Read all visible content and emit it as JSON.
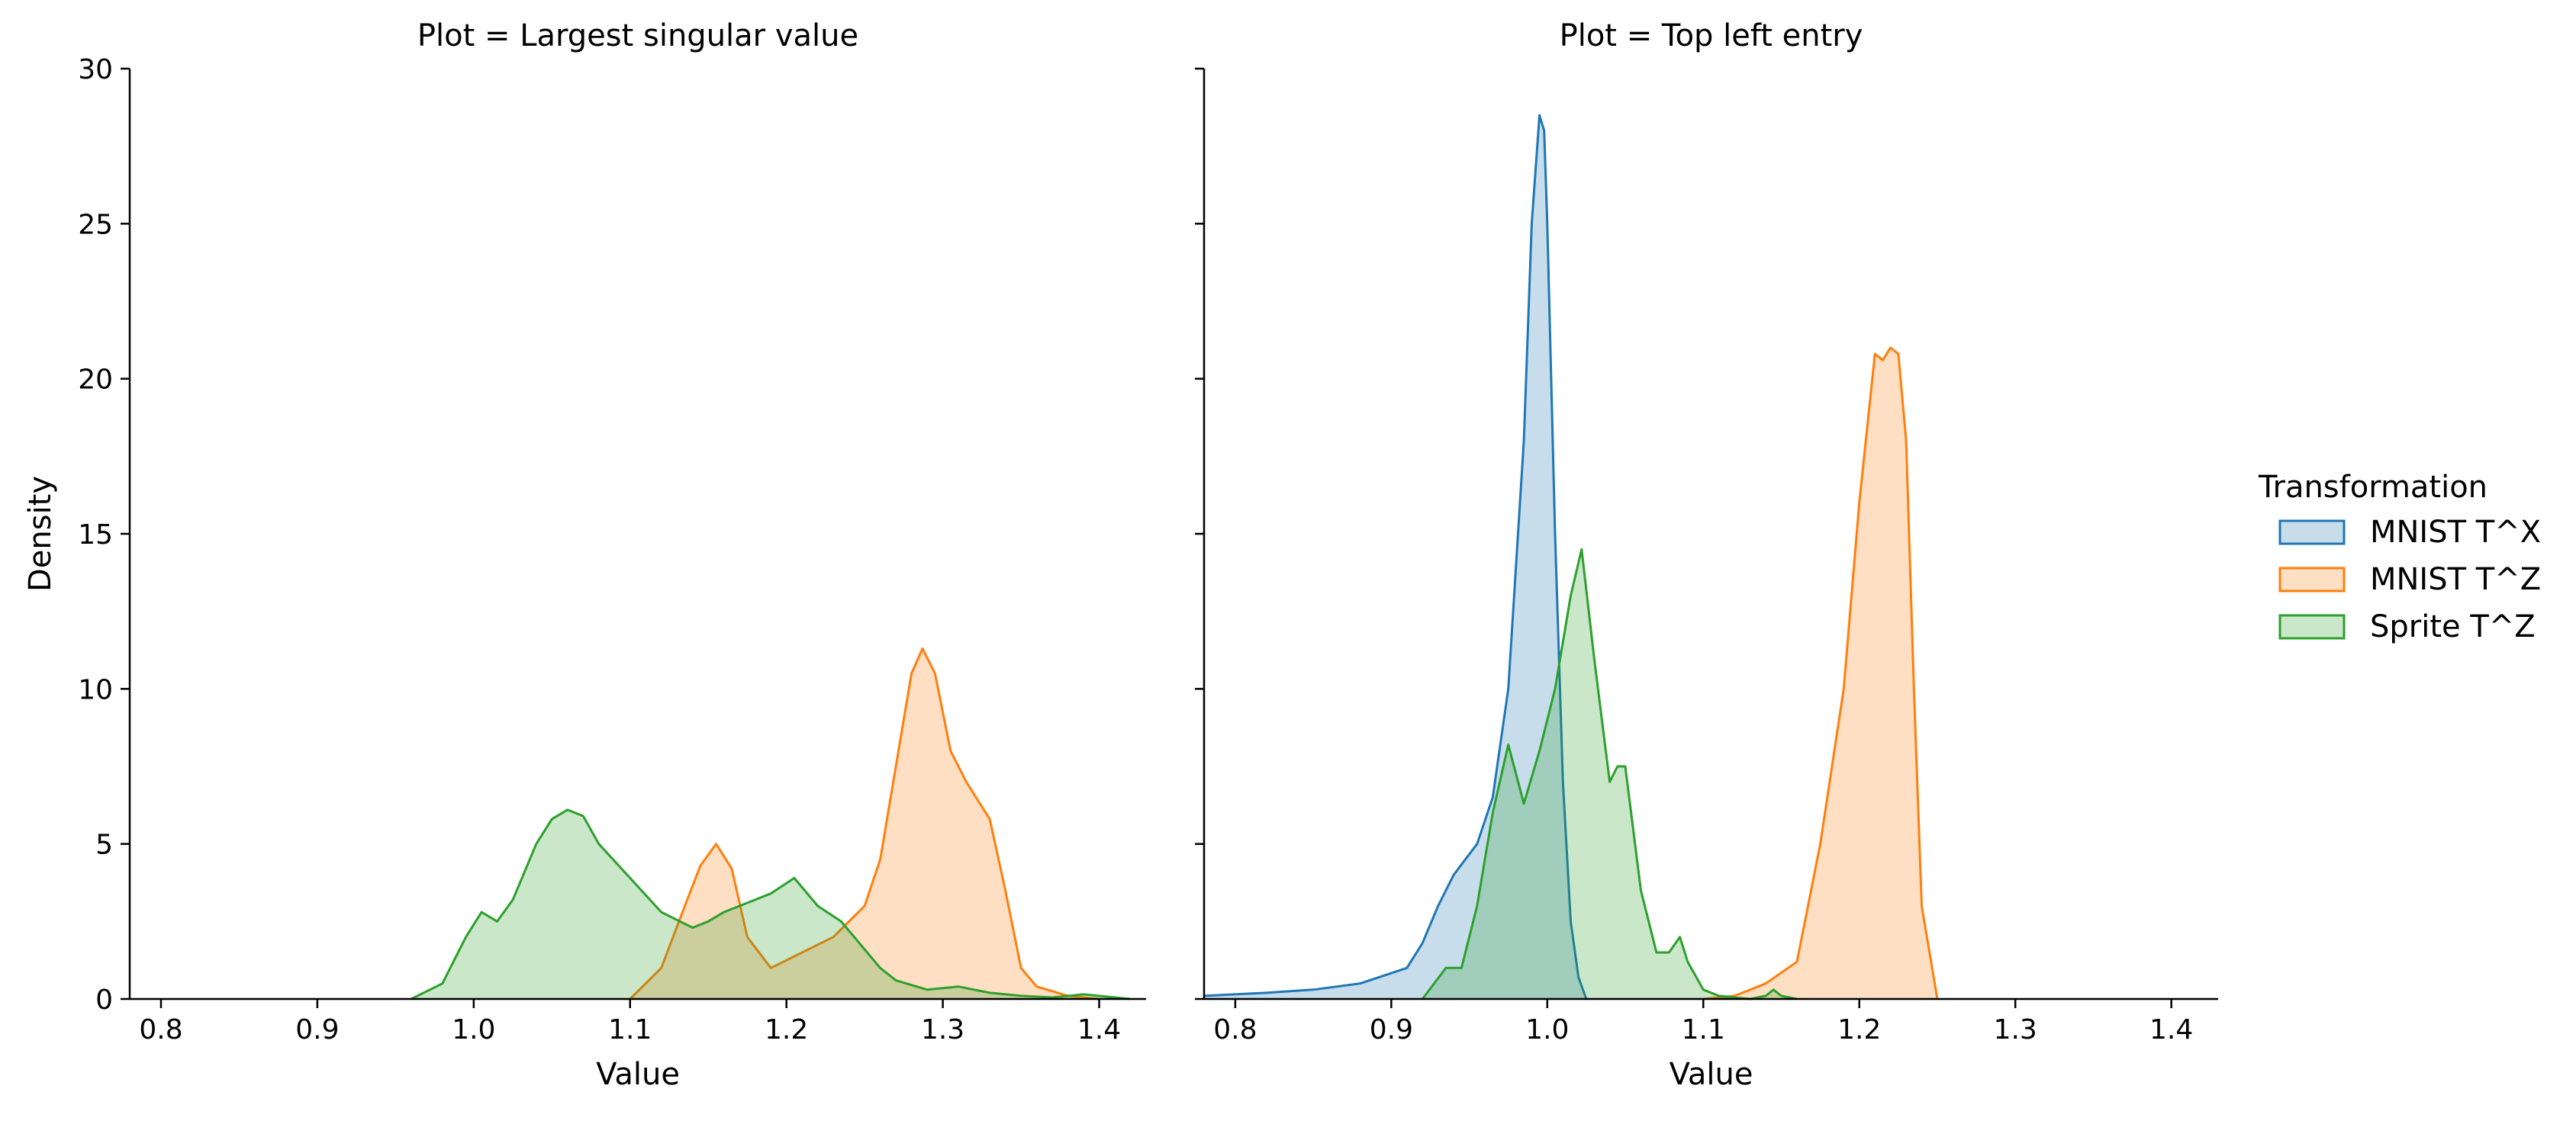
{
  "colors": {
    "MNIST T^X": "#1f77b4",
    "MNIST T^Z": "#ff7f0e",
    "Sprite T^Z": "#2ca02c"
  },
  "chart_data": {
    "type": "area",
    "subtype": "kde",
    "shared_y": true,
    "ylabel": "Density",
    "ylim": [
      0,
      30
    ],
    "yticks": [
      0,
      5,
      10,
      15,
      20,
      25,
      30
    ],
    "xlim": [
      0.78,
      1.43
    ],
    "xticks": [
      0.8,
      0.9,
      1.0,
      1.1,
      1.2,
      1.3,
      1.4
    ],
    "xtick_labels": [
      "0.8",
      "0.9",
      "1.0",
      "1.1",
      "1.2",
      "1.3",
      "1.4"
    ],
    "grid": false,
    "legend": {
      "title": "Transformation",
      "placement": "right",
      "entries": [
        "MNIST T^X",
        "MNIST T^Z",
        "Sprite T^Z"
      ]
    },
    "panels": [
      {
        "title": "Plot = Largest singular value",
        "xlabel": "Value",
        "series": [
          {
            "name": "MNIST T^Z",
            "x": [
              1.1,
              1.12,
              1.135,
              1.145,
              1.155,
              1.165,
              1.175,
              1.19,
              1.21,
              1.23,
              1.25,
              1.26,
              1.27,
              1.28,
              1.287,
              1.295,
              1.305,
              1.315,
              1.33,
              1.34,
              1.35,
              1.36,
              1.38,
              1.4
            ],
            "y": [
              0,
              1.0,
              3.0,
              4.3,
              5.0,
              4.2,
              2.0,
              1.0,
              1.5,
              2.0,
              3.0,
              4.5,
              7.5,
              10.5,
              11.3,
              10.5,
              8.0,
              7.0,
              5.8,
              3.5,
              1.0,
              0.4,
              0.1,
              0
            ]
          },
          {
            "name": "Sprite T^Z",
            "x": [
              0.96,
              0.98,
              0.995,
              1.005,
              1.015,
              1.025,
              1.04,
              1.05,
              1.06,
              1.07,
              1.08,
              1.1,
              1.12,
              1.14,
              1.15,
              1.16,
              1.17,
              1.18,
              1.19,
              1.205,
              1.22,
              1.235,
              1.25,
              1.26,
              1.27,
              1.29,
              1.31,
              1.33,
              1.35,
              1.37,
              1.39,
              1.41,
              1.42
            ],
            "y": [
              0,
              0.5,
              2.0,
              2.8,
              2.5,
              3.2,
              5.0,
              5.8,
              6.1,
              5.9,
              5.0,
              3.9,
              2.8,
              2.3,
              2.5,
              2.8,
              3.0,
              3.2,
              3.4,
              3.9,
              3.0,
              2.5,
              1.6,
              1.0,
              0.6,
              0.3,
              0.4,
              0.2,
              0.1,
              0.05,
              0.15,
              0.05,
              0
            ]
          }
        ]
      },
      {
        "title": "Plot = Top left entry",
        "xlabel": "Value",
        "series": [
          {
            "name": "MNIST T^X",
            "x": [
              0.78,
              0.8,
              0.82,
              0.85,
              0.88,
              0.91,
              0.92,
              0.93,
              0.94,
              0.955,
              0.965,
              0.975,
              0.985,
              0.99,
              0.995,
              0.998,
              1.0,
              1.005,
              1.01,
              1.015,
              1.02,
              1.025
            ],
            "y": [
              0.1,
              0.15,
              0.2,
              0.3,
              0.5,
              1.0,
              1.8,
              3.0,
              4.0,
              5.0,
              6.5,
              10.0,
              18.0,
              25.0,
              28.5,
              28.0,
              25.0,
              15.0,
              7.0,
              2.5,
              0.7,
              0
            ]
          },
          {
            "name": "MNIST T^Z",
            "x": [
              1.1,
              1.12,
              1.14,
              1.16,
              1.175,
              1.19,
              1.2,
              1.21,
              1.215,
              1.22,
              1.225,
              1.23,
              1.235,
              1.24,
              1.25
            ],
            "y": [
              0,
              0.1,
              0.5,
              1.2,
              5.0,
              10.0,
              16.0,
              20.8,
              20.6,
              21.0,
              20.8,
              18.0,
              10.0,
              3.0,
              0
            ]
          },
          {
            "name": "Sprite T^Z",
            "x": [
              0.92,
              0.935,
              0.945,
              0.955,
              0.965,
              0.975,
              0.985,
              0.995,
              1.005,
              1.015,
              1.022,
              1.03,
              1.04,
              1.045,
              1.05,
              1.06,
              1.07,
              1.078,
              1.085,
              1.09,
              1.1,
              1.11,
              1.12,
              1.13,
              1.14,
              1.145,
              1.15,
              1.16
            ],
            "y": [
              0,
              1.0,
              1.0,
              3.0,
              6.0,
              8.2,
              6.3,
              8.0,
              10.0,
              13.0,
              14.5,
              11.0,
              7.0,
              7.5,
              7.5,
              3.5,
              1.5,
              1.5,
              2.0,
              1.2,
              0.3,
              0.1,
              0.05,
              0,
              0.1,
              0.3,
              0.1,
              0
            ]
          }
        ]
      }
    ]
  }
}
